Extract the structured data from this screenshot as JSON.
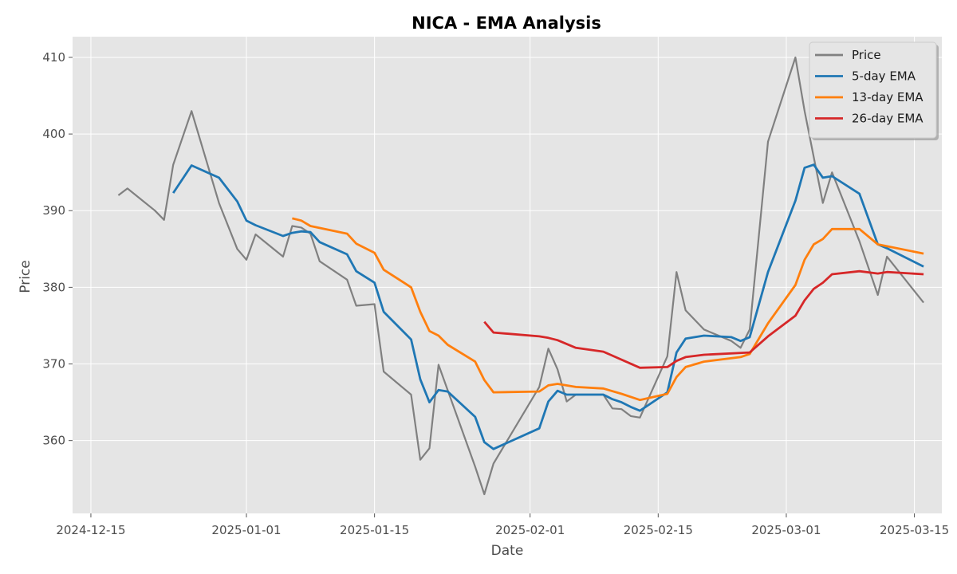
{
  "chart_data": {
    "type": "line",
    "title": "NICA - EMA Analysis",
    "xlabel": "Date",
    "ylabel": "Price",
    "x_axis_type": "date",
    "xlim": [
      "2024-12-13",
      "2025-03-18"
    ],
    "ylim": [
      350.5,
      412.7
    ],
    "x_ticks": [
      "2024-12-15",
      "2025-01-01",
      "2025-01-15",
      "2025-02-01",
      "2025-02-15",
      "2025-03-01",
      "2025-03-15"
    ],
    "y_ticks": [
      360,
      370,
      380,
      390,
      400,
      410
    ],
    "grid": true,
    "legend": "top-right",
    "background": "#e5e5e5",
    "series": [
      {
        "name": "Price",
        "color": "#808080",
        "points": [
          [
            "2024-12-18",
            392.0
          ],
          [
            "2024-12-19",
            392.9
          ],
          [
            "2024-12-22",
            390.0
          ],
          [
            "2024-12-23",
            388.8
          ],
          [
            "2024-12-24",
            396.0
          ],
          [
            "2024-12-26",
            403.0
          ],
          [
            "2024-12-29",
            391.0
          ],
          [
            "2024-12-31",
            385.0
          ],
          [
            "2025-01-01",
            383.6
          ],
          [
            "2025-01-02",
            386.9
          ],
          [
            "2025-01-05",
            384.0
          ],
          [
            "2025-01-06",
            388.0
          ],
          [
            "2025-01-07",
            387.8
          ],
          [
            "2025-01-08",
            387.0
          ],
          [
            "2025-01-09",
            383.4
          ],
          [
            "2025-01-12",
            381.0
          ],
          [
            "2025-01-13",
            377.6
          ],
          [
            "2025-01-15",
            377.8
          ],
          [
            "2025-01-16",
            369.0
          ],
          [
            "2025-01-19",
            366.0
          ],
          [
            "2025-01-20",
            357.5
          ],
          [
            "2025-01-21",
            359.0
          ],
          [
            "2025-01-22",
            369.9
          ],
          [
            "2025-01-26",
            356.6
          ],
          [
            "2025-01-27",
            353.0
          ],
          [
            "2025-01-28",
            357.0
          ],
          [
            "2025-02-02",
            367.0
          ],
          [
            "2025-02-03",
            372.0
          ],
          [
            "2025-02-04",
            369.3
          ],
          [
            "2025-02-05",
            365.1
          ],
          [
            "2025-02-06",
            366.0
          ],
          [
            "2025-02-09",
            366.0
          ],
          [
            "2025-02-10",
            364.2
          ],
          [
            "2025-02-11",
            364.1
          ],
          [
            "2025-02-12",
            363.2
          ],
          [
            "2025-02-13",
            363.0
          ],
          [
            "2025-02-16",
            371.0
          ],
          [
            "2025-02-17",
            382.0
          ],
          [
            "2025-02-18",
            377.0
          ],
          [
            "2025-02-20",
            374.5
          ],
          [
            "2025-02-23",
            373.0
          ],
          [
            "2025-02-24",
            372.1
          ],
          [
            "2025-02-25",
            374.5
          ],
          [
            "2025-02-27",
            399.0
          ],
          [
            "2025-03-02",
            410.0
          ],
          [
            "2025-03-03",
            403.0
          ],
          [
            "2025-03-05",
            391.0
          ],
          [
            "2025-03-06",
            395.0
          ],
          [
            "2025-03-09",
            386.0
          ],
          [
            "2025-03-11",
            379.0
          ],
          [
            "2025-03-12",
            384.0
          ],
          [
            "2025-03-16",
            378.0
          ]
        ]
      },
      {
        "name": "5-day EMA",
        "color": "#1f77b4",
        "points": [
          [
            "2024-12-24",
            392.3
          ],
          [
            "2024-12-26",
            395.9
          ],
          [
            "2024-12-29",
            394.3
          ],
          [
            "2024-12-31",
            391.2
          ],
          [
            "2025-01-01",
            388.7
          ],
          [
            "2025-01-02",
            388.1
          ],
          [
            "2025-01-05",
            386.7
          ],
          [
            "2025-01-06",
            387.1
          ],
          [
            "2025-01-07",
            387.3
          ],
          [
            "2025-01-08",
            387.2
          ],
          [
            "2025-01-09",
            385.9
          ],
          [
            "2025-01-12",
            384.3
          ],
          [
            "2025-01-13",
            382.1
          ],
          [
            "2025-01-15",
            380.6
          ],
          [
            "2025-01-16",
            376.8
          ],
          [
            "2025-01-19",
            373.2
          ],
          [
            "2025-01-20",
            368.0
          ],
          [
            "2025-01-21",
            365.0
          ],
          [
            "2025-01-22",
            366.6
          ],
          [
            "2025-01-23",
            366.4
          ],
          [
            "2025-01-26",
            363.1
          ],
          [
            "2025-01-27",
            359.8
          ],
          [
            "2025-01-28",
            358.9
          ],
          [
            "2025-02-02",
            361.6
          ],
          [
            "2025-02-03",
            365.1
          ],
          [
            "2025-02-04",
            366.5
          ],
          [
            "2025-02-05",
            366.0
          ],
          [
            "2025-02-06",
            366.0
          ],
          [
            "2025-02-09",
            366.0
          ],
          [
            "2025-02-10",
            365.4
          ],
          [
            "2025-02-11",
            365.0
          ],
          [
            "2025-02-12",
            364.4
          ],
          [
            "2025-02-13",
            363.9
          ],
          [
            "2025-02-16",
            366.3
          ],
          [
            "2025-02-17",
            371.5
          ],
          [
            "2025-02-18",
            373.3
          ],
          [
            "2025-02-20",
            373.7
          ],
          [
            "2025-02-23",
            373.5
          ],
          [
            "2025-02-24",
            373.0
          ],
          [
            "2025-02-25",
            373.5
          ],
          [
            "2025-02-27",
            382.0
          ],
          [
            "2025-03-02",
            391.3
          ],
          [
            "2025-03-03",
            395.6
          ],
          [
            "2025-03-04",
            396.0
          ],
          [
            "2025-03-05",
            394.3
          ],
          [
            "2025-03-06",
            394.5
          ],
          [
            "2025-03-09",
            392.2
          ],
          [
            "2025-03-11",
            385.6
          ],
          [
            "2025-03-12",
            385.1
          ],
          [
            "2025-03-16",
            382.7
          ]
        ]
      },
      {
        "name": "13-day EMA",
        "color": "#ff7f0e",
        "points": [
          [
            "2025-01-06",
            389.0
          ],
          [
            "2025-01-07",
            388.7
          ],
          [
            "2025-01-08",
            388.0
          ],
          [
            "2025-01-12",
            387.0
          ],
          [
            "2025-01-13",
            385.7
          ],
          [
            "2025-01-15",
            384.5
          ],
          [
            "2025-01-16",
            382.3
          ],
          [
            "2025-01-19",
            380.0
          ],
          [
            "2025-01-20",
            376.8
          ],
          [
            "2025-01-21",
            374.3
          ],
          [
            "2025-01-22",
            373.7
          ],
          [
            "2025-01-23",
            372.5
          ],
          [
            "2025-01-26",
            370.3
          ],
          [
            "2025-01-27",
            367.9
          ],
          [
            "2025-01-28",
            366.3
          ],
          [
            "2025-02-02",
            366.4
          ],
          [
            "2025-02-03",
            367.2
          ],
          [
            "2025-02-04",
            367.4
          ],
          [
            "2025-02-06",
            367.0
          ],
          [
            "2025-02-09",
            366.8
          ],
          [
            "2025-02-11",
            366.1
          ],
          [
            "2025-02-13",
            365.3
          ],
          [
            "2025-02-16",
            366.1
          ],
          [
            "2025-02-17",
            368.3
          ],
          [
            "2025-02-18",
            369.6
          ],
          [
            "2025-02-20",
            370.3
          ],
          [
            "2025-02-24",
            370.9
          ],
          [
            "2025-02-25",
            371.3
          ],
          [
            "2025-02-27",
            375.3
          ],
          [
            "2025-03-02",
            380.3
          ],
          [
            "2025-03-03",
            383.6
          ],
          [
            "2025-03-04",
            385.6
          ],
          [
            "2025-03-05",
            386.3
          ],
          [
            "2025-03-06",
            387.6
          ],
          [
            "2025-03-09",
            387.6
          ],
          [
            "2025-03-11",
            385.6
          ],
          [
            "2025-03-16",
            384.4
          ]
        ]
      },
      {
        "name": "26-day EMA",
        "color": "#d62728",
        "points": [
          [
            "2025-01-27",
            375.5
          ],
          [
            "2025-01-28",
            374.1
          ],
          [
            "2025-02-02",
            373.6
          ],
          [
            "2025-02-03",
            373.4
          ],
          [
            "2025-02-04",
            373.1
          ],
          [
            "2025-02-06",
            372.1
          ],
          [
            "2025-02-09",
            371.6
          ],
          [
            "2025-02-13",
            369.5
          ],
          [
            "2025-02-16",
            369.6
          ],
          [
            "2025-02-17",
            370.4
          ],
          [
            "2025-02-18",
            370.9
          ],
          [
            "2025-02-20",
            371.2
          ],
          [
            "2025-02-25",
            371.5
          ],
          [
            "2025-02-27",
            373.6
          ],
          [
            "2025-03-02",
            376.3
          ],
          [
            "2025-03-03",
            378.3
          ],
          [
            "2025-03-04",
            379.8
          ],
          [
            "2025-03-05",
            380.6
          ],
          [
            "2025-03-06",
            381.7
          ],
          [
            "2025-03-09",
            382.1
          ],
          [
            "2025-03-11",
            381.8
          ],
          [
            "2025-03-12",
            382.0
          ],
          [
            "2025-03-16",
            381.7
          ]
        ]
      }
    ]
  }
}
